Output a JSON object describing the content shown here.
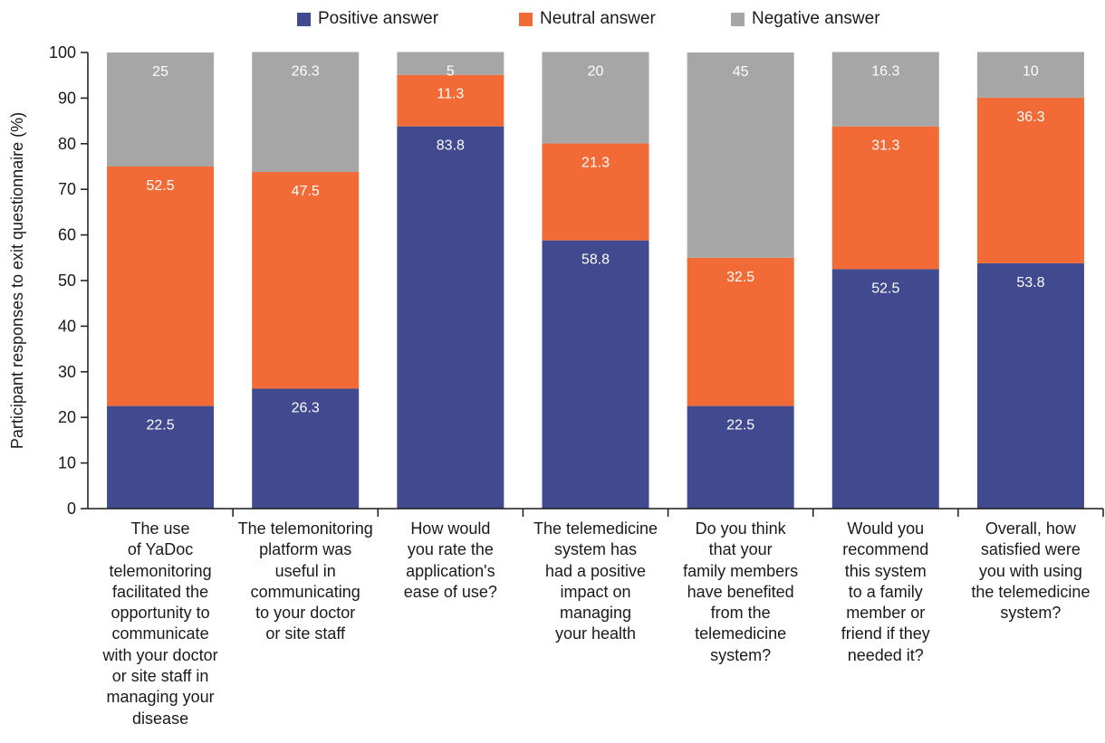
{
  "chart_data": {
    "type": "bar",
    "stacked": true,
    "title": "",
    "xlabel": "",
    "ylabel": "Participant responses to exit questionnaire (%)",
    "ylim": [
      0,
      100
    ],
    "yticks": [
      0,
      10,
      20,
      30,
      40,
      50,
      60,
      70,
      80,
      90,
      100
    ],
    "grid": false,
    "legend_position": "top",
    "categories": [
      [
        "The use",
        "of YaDoc",
        "telemonitoring",
        "facilitated the",
        "opportunity to",
        "communicate",
        "with your doctor",
        "or site staff in",
        "managing your",
        "disease"
      ],
      [
        "The telemonitoring",
        "platform was",
        "useful in",
        "communicating",
        "to your doctor",
        "or site staff"
      ],
      [
        "How would",
        "you rate the",
        "application's",
        "ease of use?"
      ],
      [
        "The telemedicine",
        "system has",
        "had a positive",
        "impact on",
        "managing",
        "your health"
      ],
      [
        "Do you think",
        "that your",
        "family members",
        "have benefited",
        "from the",
        "telemedicine",
        "system?"
      ],
      [
        "Would you",
        "recommend",
        "this system",
        "to a family",
        "member or",
        "friend if they",
        "needed it?"
      ],
      [
        "Overall, how",
        "satisfied were",
        "you with using",
        "the telemedicine",
        "system?"
      ]
    ],
    "series": [
      {
        "name": "Positive answer",
        "color": "#414a8f",
        "values": [
          22.5,
          26.3,
          83.8,
          58.8,
          22.5,
          52.5,
          53.8
        ],
        "labels": [
          "22.5",
          "26.3",
          "83.8",
          "58.8",
          "22.5",
          "52.5",
          "53.8"
        ]
      },
      {
        "name": "Neutral answer",
        "color": "#f26a36",
        "values": [
          52.5,
          47.5,
          11.3,
          21.3,
          32.5,
          31.3,
          36.3
        ],
        "labels": [
          "52.5",
          "47.5",
          "11.3",
          "21.3",
          "32.5",
          "31.3",
          "36.3"
        ]
      },
      {
        "name": "Negative answer",
        "color": "#a6a6a6",
        "values": [
          25,
          26.3,
          5,
          20,
          45,
          16.3,
          10
        ],
        "labels": [
          "25",
          "26.3",
          "5",
          "20",
          "45",
          "16.3",
          "10"
        ]
      }
    ]
  }
}
